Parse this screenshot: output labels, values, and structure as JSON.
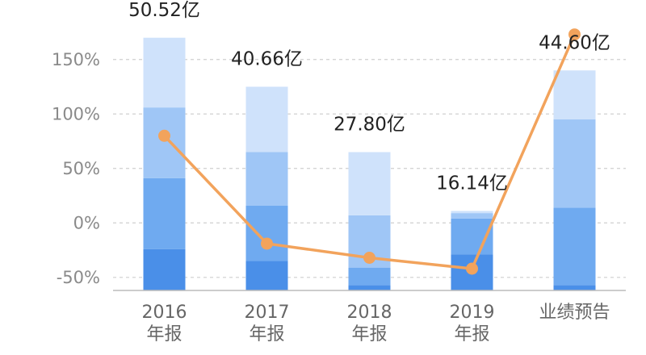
{
  "chart_data": {
    "type": "bar",
    "stacked": true,
    "grid": true,
    "legend": "none",
    "categories": [
      [
        "2016",
        "年报"
      ],
      [
        "2017",
        "年报"
      ],
      [
        "2018",
        "年报"
      ],
      [
        "2019",
        "年报"
      ],
      [
        "业绩预告"
      ]
    ],
    "ylim": [
      -62,
      175
    ],
    "yticks": [
      -50,
      0,
      50,
      100,
      150
    ],
    "ytick_labels": [
      "-50%",
      "0%",
      "50%",
      "100%",
      "150%"
    ],
    "bar_labels": [
      "50.52亿",
      "40.66亿",
      "27.80亿",
      "16.14亿",
      "44.60亿"
    ],
    "segments": [
      [
        -62,
        -24,
        41,
        106,
        170
      ],
      [
        -62,
        -35,
        16,
        65,
        125
      ],
      [
        -62,
        -57,
        -41,
        7,
        65
      ],
      [
        -62,
        -29,
        4,
        9,
        11
      ],
      [
        -62,
        -57,
        14,
        95,
        140
      ]
    ],
    "segment_colors": [
      "#4a8fe8",
      "#6faaf0",
      "#9fc6f6",
      "#cfe2fb"
    ],
    "line": {
      "color": "#f2a35c",
      "values": [
        80,
        -19,
        -32,
        -42,
        173
      ]
    }
  }
}
